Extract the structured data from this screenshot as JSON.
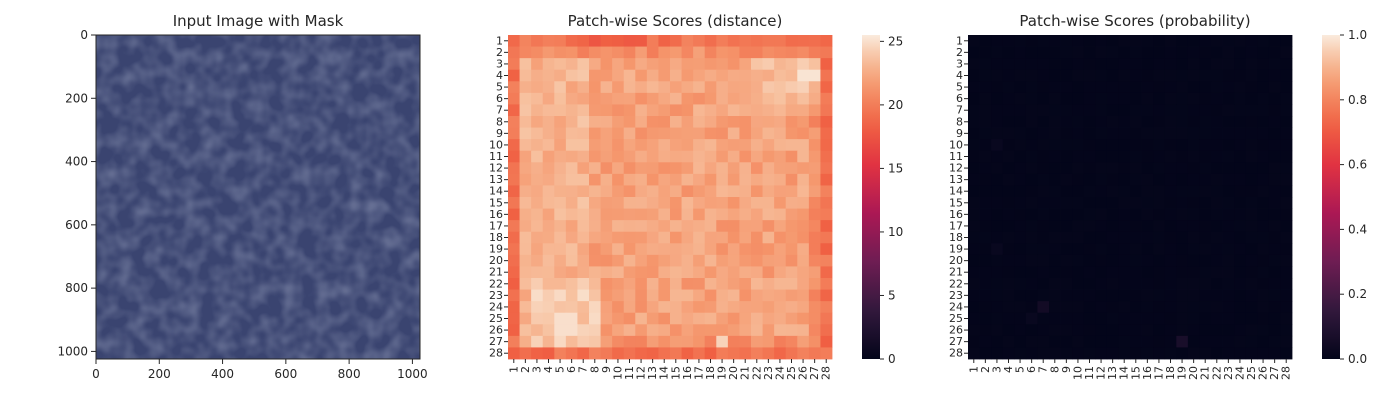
{
  "chart_data": [
    {
      "type": "image",
      "title": "Input Image with Mask",
      "image_description": "blue leather texture",
      "xlim": [
        0,
        1024
      ],
      "ylim": [
        1024,
        0
      ],
      "xticks": [
        0,
        200,
        400,
        600,
        800,
        1000
      ],
      "yticks": [
        0,
        200,
        400,
        600,
        800,
        1000
      ],
      "colors": {
        "base": "#3a4470",
        "crease": "#1f2747",
        "highlight": "#6b77a6"
      }
    },
    {
      "type": "heatmap",
      "title": "Patch-wise Scores (distance)",
      "rows": 28,
      "cols": 28,
      "tick_labels": [
        "1",
        "2",
        "3",
        "4",
        "5",
        "6",
        "7",
        "8",
        "9",
        "10",
        "11",
        "12",
        "13",
        "14",
        "15",
        "16",
        "17",
        "18",
        "19",
        "20",
        "21",
        "22",
        "23",
        "24",
        "25",
        "26",
        "27",
        "28"
      ],
      "colorbar": {
        "min": 0,
        "max": 25.5,
        "ticks": [
          0,
          5,
          10,
          15,
          20,
          25
        ],
        "tick_labels": [
          "0",
          "5",
          "10",
          "15",
          "20",
          "25"
        ]
      },
      "colormap": "rocket",
      "value_description": "edges ~18-20 (orange), interior ~21-25 (light peach), brightest near (row 4, col 26-27) and (row 25-26, col 5-6)"
    },
    {
      "type": "heatmap",
      "title": "Patch-wise Scores (probability)",
      "rows": 28,
      "cols": 28,
      "tick_labels": [
        "1",
        "2",
        "3",
        "4",
        "5",
        "6",
        "7",
        "8",
        "9",
        "10",
        "11",
        "12",
        "13",
        "14",
        "15",
        "16",
        "17",
        "18",
        "19",
        "20",
        "21",
        "22",
        "23",
        "24",
        "25",
        "26",
        "27",
        "28"
      ],
      "colorbar": {
        "min": 0,
        "max": 1.0,
        "ticks": [
          0,
          0.2,
          0.4,
          0.6,
          0.8,
          1.0
        ],
        "tick_labels": [
          "0.0",
          "0.2",
          "0.4",
          "0.6",
          "0.8",
          "1.0"
        ]
      },
      "colormap": "rocket",
      "value_description": "near 0 everywhere; faint highlights at (row 27, col 19) and (row 24, col 7)",
      "highlights": [
        {
          "row": 27,
          "col": 19,
          "value": 0.07
        },
        {
          "row": 24,
          "col": 7,
          "value": 0.05
        }
      ]
    }
  ]
}
